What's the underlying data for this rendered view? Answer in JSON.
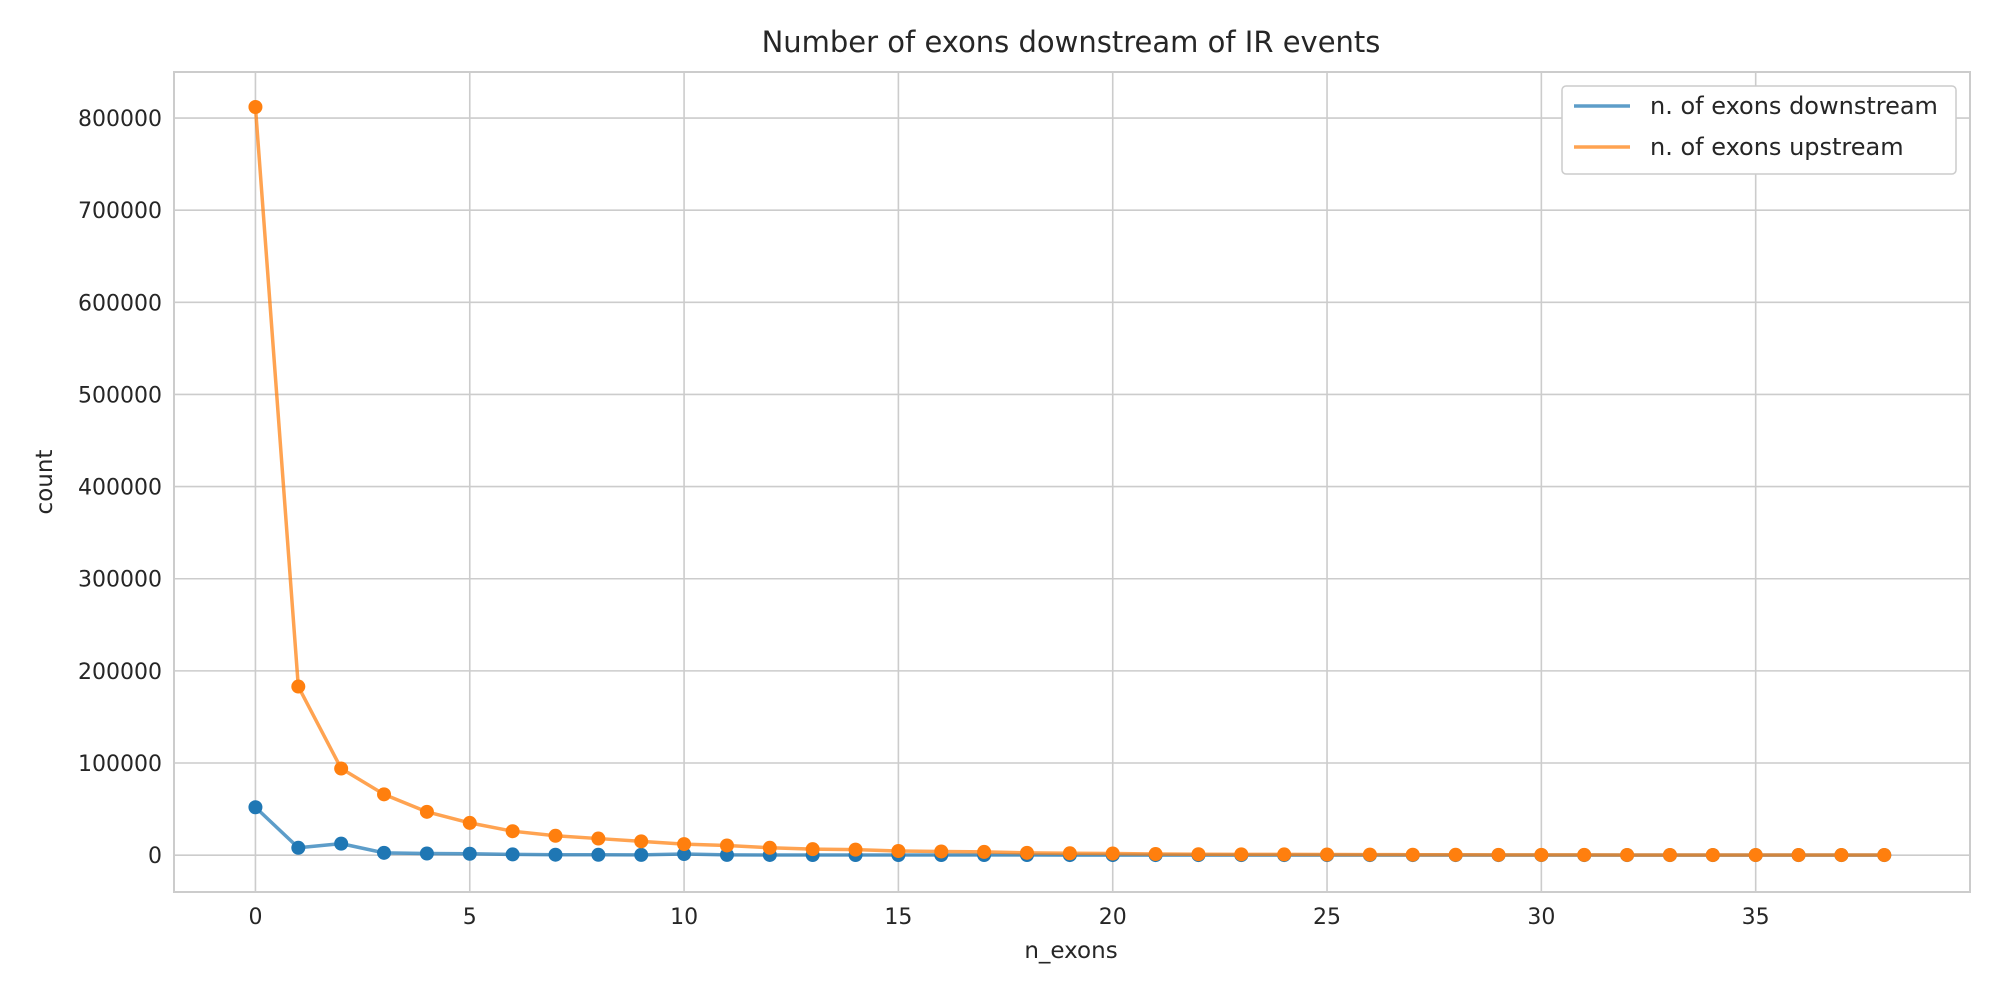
{
  "chart_data": {
    "type": "line",
    "title": "Number of exons downstream of IR events",
    "xlabel": "n_exons",
    "ylabel": "count",
    "xlim": [
      -1.9,
      40.0
    ],
    "ylim": [
      -40000,
      850000
    ],
    "xticks": [
      0,
      5,
      10,
      15,
      20,
      25,
      30,
      35
    ],
    "yticks": [
      0,
      100000,
      200000,
      300000,
      400000,
      500000,
      600000,
      700000,
      800000
    ],
    "grid": true,
    "legend_position": "top-right",
    "x": [
      0,
      1,
      2,
      3,
      4,
      5,
      6,
      7,
      8,
      9,
      10,
      11,
      12,
      13,
      14,
      15,
      16,
      17,
      18,
      19,
      20,
      21,
      22,
      23,
      24,
      25,
      26,
      27,
      28,
      29,
      30,
      31,
      32,
      33,
      34,
      35,
      36,
      37,
      38
    ],
    "series": [
      {
        "name": "n. of exons downstream",
        "color": "#1f77b4",
        "values": [
          52000,
          8000,
          12500,
          2500,
          1800,
          1500,
          800,
          500,
          400,
          300,
          1200,
          300,
          200,
          100,
          100,
          100,
          100,
          100,
          100,
          50,
          50,
          50,
          50,
          50,
          50,
          50,
          50,
          50,
          50,
          50,
          50,
          50,
          50,
          50,
          50,
          50,
          50,
          50,
          50
        ]
      },
      {
        "name": "n. of exons upstream",
        "color": "#ff7f0e",
        "values": [
          812000,
          183000,
          94000,
          66000,
          47000,
          35000,
          26000,
          21000,
          18000,
          15000,
          12000,
          10500,
          8000,
          6500,
          6000,
          4500,
          4000,
          3500,
          2500,
          2000,
          1800,
          1200,
          1000,
          900,
          800,
          700,
          600,
          500,
          400,
          350,
          300,
          250,
          200,
          150,
          150,
          120,
          100,
          100,
          100
        ]
      }
    ]
  }
}
